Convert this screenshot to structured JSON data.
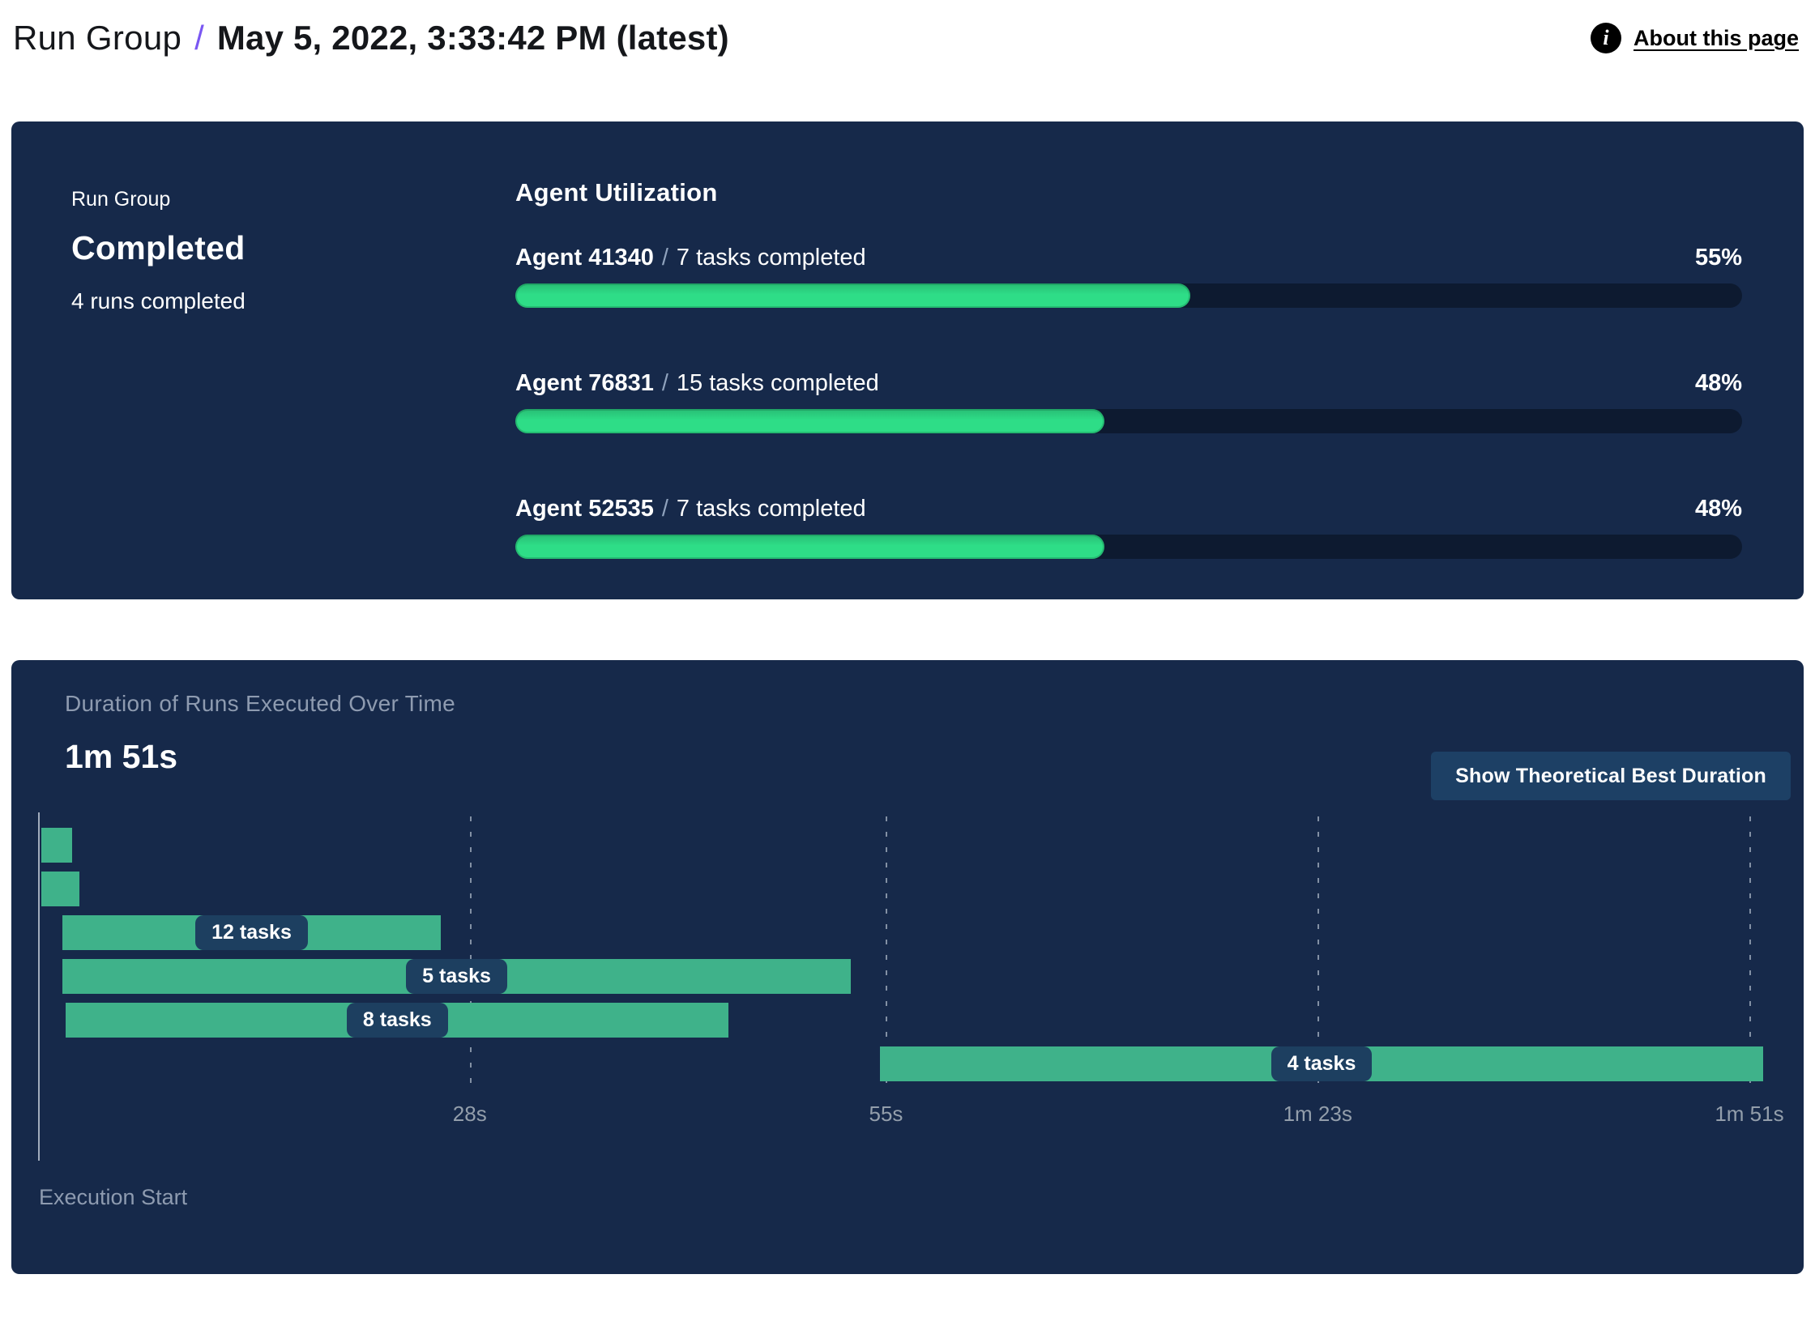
{
  "header": {
    "breadcrumb_root": "Run Group",
    "separator": "/",
    "title": "May 5, 2022, 3:33:42 PM (latest)",
    "about_label": "About this page",
    "info_icon": "info-icon"
  },
  "run_group_panel": {
    "label": "Run Group",
    "status": "Completed",
    "runs_summary": "4 runs completed",
    "utilization_heading": "Agent Utilization",
    "slash": "/",
    "agents": [
      {
        "name": "Agent 41340",
        "tasks": "7 tasks completed",
        "percent": 55,
        "percent_label": "55%"
      },
      {
        "name": "Agent 76831",
        "tasks": "15 tasks completed",
        "percent": 48,
        "percent_label": "48%"
      },
      {
        "name": "Agent 52535",
        "tasks": "7 tasks completed",
        "percent": 48,
        "percent_label": "48%"
      }
    ]
  },
  "duration_panel": {
    "title": "Duration of Runs Executed Over Time",
    "total_duration": "1m 51s",
    "button_label": "Show Theoretical Best Duration",
    "axis_label": "Execution Start"
  },
  "chart_data": {
    "type": "gantt",
    "title": "Duration of Runs Executed Over Time",
    "xlabel": "Execution Start",
    "axis_max_seconds": 112,
    "total_duration_label": "1m 51s",
    "ticks": [
      {
        "seconds": 28,
        "label": "28s"
      },
      {
        "seconds": 55,
        "label": "55s"
      },
      {
        "seconds": 83,
        "label": "1m 23s"
      },
      {
        "seconds": 111,
        "label": "1m 51s"
      }
    ],
    "runs": [
      {
        "start_s": 0.2,
        "end_s": 2.2,
        "label": null
      },
      {
        "start_s": 0.2,
        "end_s": 2.7,
        "label": null
      },
      {
        "start_s": 1.6,
        "end_s": 26.1,
        "label": "12 tasks"
      },
      {
        "start_s": 1.6,
        "end_s": 52.7,
        "label": "5 tasks"
      },
      {
        "start_s": 1.8,
        "end_s": 44.8,
        "label": "8 tasks"
      },
      {
        "start_s": 54.6,
        "end_s": 111.9,
        "label": "4 tasks"
      }
    ],
    "grid_on": true,
    "legend": "none"
  },
  "theme": {
    "panel_bg": "#16294a",
    "track_bg": "#0d1a30",
    "progress_green": "#2edd87",
    "gantt_green": "#3fb28a",
    "pill_bg": "#1d3f60",
    "accent_purple": "#7a57f2",
    "button_bg": "#1d4065",
    "muted_blue": "#8e9bb0",
    "tick_gray": "#939eab"
  }
}
